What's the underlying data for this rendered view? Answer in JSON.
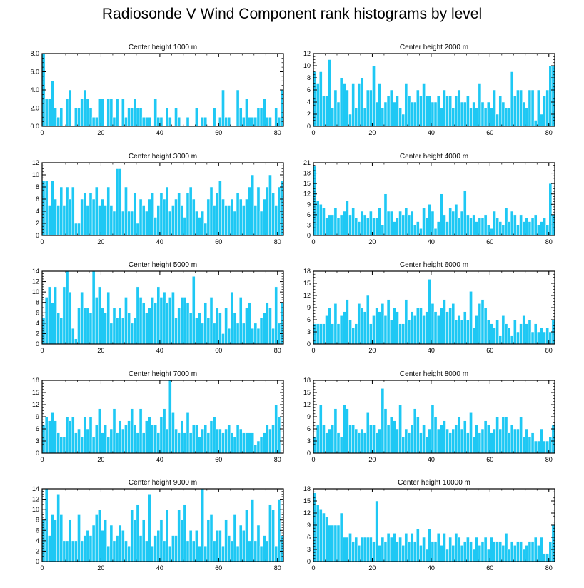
{
  "title": "Radiosonde V Wind Component rank histograms by level",
  "colors": {
    "bar": "#1ec8f4",
    "bar_edge": "#ffffff",
    "axis": "#000000"
  },
  "chart_data": [
    {
      "type": "bar",
      "title": "Center height 1000 m",
      "xlim": [
        0,
        82
      ],
      "xticks": [
        0,
        20,
        40,
        60,
        80
      ],
      "xticklabels": [
        "0",
        "20",
        "40",
        "60",
        "80"
      ],
      "ylim": [
        0,
        8
      ],
      "yticks": [
        0,
        2,
        4,
        6,
        8
      ],
      "yticklabels": [
        "0.0",
        "2.0",
        "4.0",
        "6.0",
        "8.0"
      ],
      "values": [
        8,
        3,
        3,
        5,
        2,
        1,
        2,
        0,
        3,
        4,
        0,
        2,
        2,
        3,
        4,
        3,
        2,
        1,
        1,
        3,
        3,
        0,
        3,
        3,
        1,
        3,
        0,
        3,
        1,
        2,
        2,
        3,
        2,
        2,
        1,
        1,
        1,
        0,
        3,
        1,
        1,
        0,
        2,
        1,
        0,
        2,
        1,
        0,
        0,
        1,
        0,
        0,
        2,
        0,
        1,
        1,
        0,
        0,
        2,
        0,
        1,
        4,
        1,
        1,
        0,
        0,
        4,
        2,
        1,
        3,
        1,
        1,
        1,
        2,
        2,
        3,
        1,
        1,
        0,
        2,
        1,
        4
      ]
    },
    {
      "type": "bar",
      "title": "Center height 2000 m",
      "xlim": [
        0,
        82
      ],
      "xticks": [
        0,
        20,
        40,
        60,
        80
      ],
      "xticklabels": [
        "0",
        "20",
        "40",
        "60",
        "80"
      ],
      "ylim": [
        0,
        12
      ],
      "yticks": [
        0,
        2,
        4,
        6,
        8,
        10,
        12
      ],
      "yticklabels": [
        "0",
        "2",
        "4",
        "6",
        "8",
        "10",
        "12"
      ],
      "values": [
        9,
        7,
        9,
        5,
        5,
        11,
        3,
        6,
        4,
        8,
        7,
        6,
        2,
        7,
        3,
        7,
        8,
        3,
        6,
        6,
        10,
        4,
        7,
        3,
        4,
        5,
        6,
        4,
        5,
        3,
        2,
        7,
        5,
        4,
        4,
        6,
        5,
        7,
        5,
        5,
        4,
        4,
        5,
        3,
        6,
        5,
        5,
        3,
        5,
        6,
        4,
        4,
        5,
        3,
        4,
        3,
        7,
        4,
        3,
        4,
        3,
        6,
        2,
        5,
        4,
        3,
        3,
        9,
        5,
        6,
        6,
        4,
        3,
        6,
        6,
        1,
        6,
        2,
        5,
        6,
        10,
        10
      ]
    },
    {
      "type": "bar",
      "title": "Center height 3000 m",
      "xlim": [
        0,
        82
      ],
      "xticks": [
        0,
        20,
        40,
        60,
        80
      ],
      "xticklabels": [
        "0",
        "20",
        "40",
        "60",
        "80"
      ],
      "ylim": [
        0,
        12
      ],
      "yticks": [
        0,
        2,
        4,
        6,
        8,
        10,
        12
      ],
      "yticklabels": [
        "0",
        "2",
        "4",
        "6",
        "8",
        "10",
        "12"
      ],
      "values": [
        9,
        9,
        5,
        9,
        6,
        5,
        8,
        5,
        8,
        6,
        8,
        2,
        2,
        6,
        7,
        5,
        7,
        6,
        8,
        5,
        6,
        5,
        8,
        5,
        4,
        11,
        11,
        4,
        8,
        4,
        4,
        7,
        2,
        6,
        5,
        4,
        6,
        7,
        3,
        5,
        7,
        6,
        8,
        4,
        5,
        6,
        7,
        5,
        3,
        7,
        8,
        6,
        4,
        3,
        4,
        2,
        6,
        8,
        5,
        7,
        9,
        6,
        5,
        5,
        6,
        4,
        7,
        6,
        5,
        6,
        8,
        10,
        5,
        8,
        4,
        6,
        8,
        10,
        7,
        5,
        8,
        9
      ]
    },
    {
      "type": "bar",
      "title": "Center height 4000 m",
      "xlim": [
        0,
        82
      ],
      "xticks": [
        0,
        20,
        40,
        60,
        80
      ],
      "xticklabels": [
        "0",
        "20",
        "40",
        "60",
        "80"
      ],
      "ylim": [
        0,
        21
      ],
      "yticks": [
        0,
        3,
        6,
        9,
        12,
        15,
        18,
        21
      ],
      "yticklabels": [
        "0",
        "3",
        "6",
        "9",
        "12",
        "15",
        "18",
        "21"
      ],
      "values": [
        20,
        10,
        9,
        8,
        5,
        6,
        6,
        8,
        5,
        6,
        7,
        10,
        6,
        8,
        5,
        4,
        7,
        6,
        5,
        7,
        5,
        5,
        8,
        3,
        12,
        7,
        7,
        4,
        5,
        7,
        6,
        8,
        6,
        7,
        3,
        4,
        2,
        8,
        5,
        9,
        7,
        2,
        4,
        12,
        6,
        4,
        8,
        7,
        9,
        5,
        7,
        13,
        6,
        5,
        6,
        4,
        5,
        5,
        6,
        3,
        2,
        7,
        5,
        4,
        3,
        8,
        4,
        7,
        6,
        3,
        6,
        4,
        5,
        4,
        5,
        6,
        3,
        4,
        5,
        3,
        15,
        6
      ]
    },
    {
      "type": "bar",
      "title": "Center height 5000 m",
      "xlim": [
        0,
        82
      ],
      "xticks": [
        0,
        20,
        40,
        60,
        80
      ],
      "xticklabels": [
        "0",
        "20",
        "40",
        "60",
        "80"
      ],
      "ylim": [
        0,
        14
      ],
      "yticks": [
        0,
        2,
        4,
        6,
        8,
        10,
        12,
        14
      ],
      "yticklabels": [
        "0",
        "2",
        "4",
        "6",
        "8",
        "10",
        "12",
        "14"
      ],
      "values": [
        5,
        9,
        11,
        8,
        11,
        6,
        5,
        11,
        14,
        10,
        3,
        1,
        7,
        10,
        7,
        7,
        6,
        14,
        9,
        11,
        7,
        6,
        10,
        4,
        7,
        5,
        7,
        5,
        9,
        6,
        4,
        5,
        11,
        9,
        8,
        6,
        7,
        9,
        8,
        11,
        9,
        10,
        8,
        9,
        10,
        5,
        7,
        9,
        9,
        8,
        6,
        13,
        5,
        6,
        4,
        8,
        5,
        9,
        4,
        7,
        6,
        2,
        7,
        3,
        10,
        6,
        4,
        9,
        4,
        7,
        8,
        3,
        4,
        3,
        5,
        6,
        8,
        7,
        3,
        11,
        4,
        8
      ]
    },
    {
      "type": "bar",
      "title": "Center height 6000 m",
      "xlim": [
        0,
        82
      ],
      "xticks": [
        0,
        20,
        40,
        60,
        80
      ],
      "xticklabels": [
        "0",
        "20",
        "40",
        "60",
        "80"
      ],
      "ylim": [
        0,
        18
      ],
      "yticks": [
        0,
        3,
        6,
        9,
        12,
        15,
        18
      ],
      "yticklabels": [
        "0",
        "3",
        "6",
        "9",
        "12",
        "15",
        "18"
      ],
      "values": [
        5,
        5,
        5,
        5,
        7,
        9,
        5,
        10,
        5,
        7,
        8,
        11,
        6,
        4,
        5,
        10,
        9,
        8,
        12,
        5,
        7,
        9,
        8,
        10,
        7,
        11,
        6,
        9,
        8,
        5,
        5,
        11,
        6,
        8,
        7,
        9,
        9,
        7,
        8,
        16,
        10,
        8,
        7,
        9,
        11,
        8,
        9,
        10,
        6,
        7,
        6,
        8,
        6,
        13,
        4,
        7,
        10,
        11,
        9,
        6,
        5,
        4,
        6,
        2,
        7,
        5,
        4,
        2,
        6,
        3,
        5,
        7,
        5,
        6,
        3,
        5,
        3,
        4,
        3,
        4,
        3,
        6
      ]
    },
    {
      "type": "bar",
      "title": "Center height 7000 m",
      "xlim": [
        0,
        82
      ],
      "xticks": [
        0,
        20,
        40,
        60,
        80
      ],
      "xticklabels": [
        "0",
        "20",
        "40",
        "60",
        "80"
      ],
      "ylim": [
        0,
        18
      ],
      "yticks": [
        0,
        3,
        6,
        9,
        12,
        15,
        18
      ],
      "yticklabels": [
        "0",
        "3",
        "6",
        "9",
        "12",
        "15",
        "18"
      ],
      "values": [
        7,
        9,
        8,
        10,
        8,
        5,
        4,
        4,
        9,
        8,
        9,
        5,
        6,
        4,
        9,
        6,
        9,
        4,
        7,
        11,
        5,
        7,
        4,
        6,
        11,
        5,
        8,
        6,
        7,
        8,
        11,
        7,
        5,
        11,
        5,
        8,
        9,
        7,
        7,
        5,
        9,
        11,
        6,
        18,
        10,
        6,
        5,
        8,
        5,
        10,
        5,
        7,
        7,
        4,
        6,
        7,
        5,
        8,
        9,
        6,
        6,
        5,
        6,
        7,
        5,
        4,
        7,
        6,
        5,
        5,
        5,
        5,
        2,
        3,
        4,
        5,
        7,
        6,
        7,
        12,
        9,
        0
      ]
    },
    {
      "type": "bar",
      "title": "Center height 8000 m",
      "xlim": [
        0,
        82
      ],
      "xticks": [
        0,
        20,
        40,
        60,
        80
      ],
      "xticklabels": [
        "0",
        "20",
        "40",
        "60",
        "80"
      ],
      "ylim": [
        0,
        18
      ],
      "yticks": [
        0,
        3,
        6,
        9,
        12,
        15,
        18
      ],
      "yticklabels": [
        "0",
        "3",
        "6",
        "9",
        "12",
        "15",
        "18"
      ],
      "values": [
        4,
        7,
        12,
        7,
        5,
        6,
        7,
        11,
        5,
        4,
        12,
        11,
        7,
        7,
        6,
        5,
        6,
        5,
        10,
        7,
        7,
        5,
        6,
        16,
        11,
        7,
        9,
        8,
        6,
        12,
        4,
        6,
        5,
        7,
        11,
        9,
        5,
        7,
        4,
        6,
        12,
        9,
        6,
        7,
        8,
        6,
        5,
        6,
        7,
        9,
        6,
        8,
        5,
        10,
        4,
        7,
        5,
        6,
        8,
        7,
        5,
        6,
        9,
        6,
        9,
        9,
        5,
        7,
        6,
        6,
        9,
        4,
        6,
        4,
        5,
        3,
        3,
        6,
        3,
        3,
        4,
        7
      ]
    },
    {
      "type": "bar",
      "title": "Center height 9000 m",
      "xlim": [
        0,
        82
      ],
      "xticks": [
        0,
        20,
        40,
        60,
        80
      ],
      "xticklabels": [
        "0",
        "20",
        "40",
        "60",
        "80"
      ],
      "ylim": [
        0,
        14
      ],
      "yticks": [
        0,
        2,
        4,
        6,
        8,
        10,
        12,
        14
      ],
      "yticklabels": [
        "0",
        "2",
        "4",
        "6",
        "8",
        "10",
        "12",
        "14"
      ],
      "values": [
        8,
        14,
        5,
        9,
        8,
        13,
        9,
        4,
        4,
        8,
        4,
        4,
        9,
        4,
        5,
        6,
        5,
        7,
        9,
        10,
        6,
        8,
        3,
        7,
        4,
        5,
        7,
        6,
        4,
        3,
        10,
        8,
        11,
        5,
        8,
        4,
        13,
        3,
        5,
        6,
        8,
        4,
        10,
        3,
        5,
        5,
        10,
        8,
        11,
        4,
        6,
        4,
        6,
        3,
        14,
        3,
        8,
        9,
        4,
        6,
        6,
        3,
        8,
        5,
        4,
        9,
        3,
        7,
        6,
        10,
        4,
        12,
        4,
        7,
        3,
        5,
        4,
        11,
        10,
        3,
        12,
        5
      ]
    },
    {
      "type": "bar",
      "title": "Center height 10000 m",
      "xlim": [
        0,
        82
      ],
      "xticks": [
        0,
        20,
        40,
        60,
        80
      ],
      "xticklabels": [
        "0",
        "20",
        "40",
        "60",
        "80"
      ],
      "ylim": [
        0,
        18
      ],
      "yticks": [
        0,
        3,
        6,
        9,
        12,
        15,
        18
      ],
      "yticklabels": [
        "0",
        "3",
        "6",
        "9",
        "12",
        "15",
        "18"
      ],
      "values": [
        17,
        14,
        13,
        12,
        11,
        9,
        9,
        9,
        9,
        12,
        6,
        6,
        7,
        5,
        6,
        4,
        6,
        6,
        6,
        6,
        5,
        15,
        4,
        6,
        5,
        7,
        6,
        7,
        5,
        6,
        4,
        7,
        5,
        7,
        5,
        8,
        4,
        6,
        3,
        8,
        5,
        5,
        7,
        4,
        7,
        3,
        6,
        4,
        7,
        6,
        4,
        5,
        6,
        5,
        3,
        6,
        4,
        5,
        6,
        3,
        6,
        5,
        5,
        5,
        4,
        7,
        3,
        5,
        4,
        5,
        5,
        3,
        4,
        5,
        5,
        6,
        4,
        6,
        2,
        2,
        5,
        9
      ]
    }
  ]
}
